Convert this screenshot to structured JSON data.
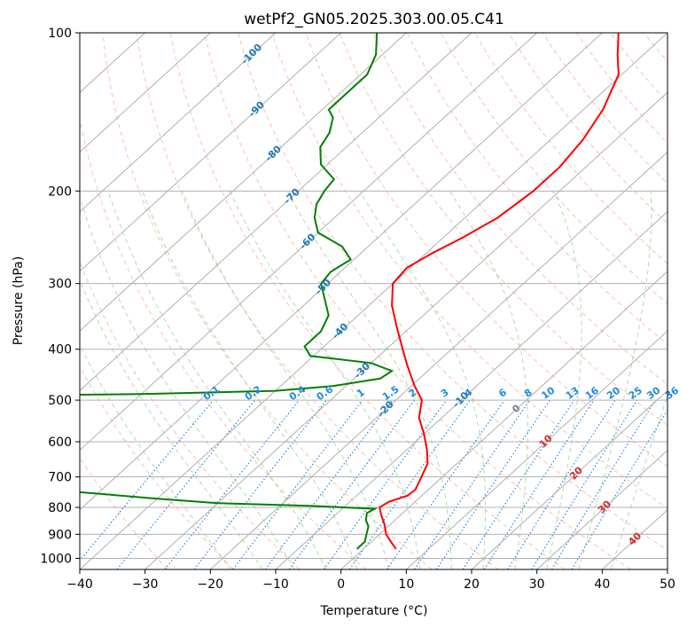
{
  "chart_data": {
    "type": "line",
    "chart_kind": "skew-T log-P diagram",
    "title": "wetPf2_GN05.2025.303.00.05.C41",
    "xlabel": "Temperature (°C)",
    "ylabel": "Pressure (hPa)",
    "xlim": [
      -40,
      50
    ],
    "ylim": [
      1050,
      100
    ],
    "y_scale": "log",
    "grid": true,
    "x_ticks": [
      -40,
      -30,
      -20,
      -10,
      0,
      10,
      20,
      30,
      40,
      50
    ],
    "y_ticks": [
      100,
      200,
      300,
      400,
      500,
      600,
      700,
      800,
      900,
      1000
    ],
    "isotherm_labels": [
      "-100",
      "-90",
      "-80",
      "-70",
      "-60",
      "-50",
      "-40",
      "-30",
      "-20",
      "-10",
      "0",
      "10",
      "20",
      "30",
      "40"
    ],
    "isotherm_label_values": [
      -100,
      -90,
      -80,
      -70,
      -60,
      -50,
      -40,
      -30,
      -20,
      -10,
      0,
      10,
      20,
      30,
      40
    ],
    "mixing_ratio_labels": [
      "0.1",
      "0.2",
      "0.4",
      "0.6",
      "1",
      "1.5",
      "2",
      "3",
      "4",
      "6",
      "8",
      "10",
      "13",
      "16",
      "20",
      "25",
      "30",
      "36"
    ],
    "mixing_ratio_values": [
      0.1,
      0.2,
      0.4,
      0.6,
      1,
      1.5,
      2,
      3,
      4,
      6,
      8,
      10,
      13,
      16,
      20,
      25,
      30,
      36
    ],
    "colors": {
      "temperature": "#ff0000",
      "dewpoint": "#008000",
      "isotherm_label_cold": "#1f77b4",
      "isotherm_label_zero": "#808080",
      "isotherm_label_warm": "#d62728",
      "mixing_ratio": "#1e88e5",
      "dry_adiabat": "#fa8d6e",
      "moist_adiabat": "#7dbf7d",
      "grid": "#b0b0b0"
    },
    "series": [
      {
        "key": "temperature",
        "points": [
          {
            "p": 960,
            "t": 5.0
          },
          {
            "p": 930,
            "t": 3.0
          },
          {
            "p": 900,
            "t": 1.0
          },
          {
            "p": 860,
            "t": -1.0
          },
          {
            "p": 830,
            "t": -2.8
          },
          {
            "p": 800,
            "t": -4.5
          },
          {
            "p": 780,
            "t": -4.0
          },
          {
            "p": 760,
            "t": -2.2
          },
          {
            "p": 740,
            "t": -2.0
          },
          {
            "p": 700,
            "t": -3.2
          },
          {
            "p": 660,
            "t": -4.5
          },
          {
            "p": 620,
            "t": -7.0
          },
          {
            "p": 580,
            "t": -10.0
          },
          {
            "p": 540,
            "t": -13.5
          },
          {
            "p": 500,
            "t": -16.0
          },
          {
            "p": 470,
            "t": -19.5
          },
          {
            "p": 430,
            "t": -24.0
          },
          {
            "p": 400,
            "t": -27.5
          },
          {
            "p": 360,
            "t": -32.5
          },
          {
            "p": 330,
            "t": -36.5
          },
          {
            "p": 300,
            "t": -40.0
          },
          {
            "p": 280,
            "t": -40.5
          },
          {
            "p": 262,
            "t": -39.0
          },
          {
            "p": 245,
            "t": -37.0
          },
          {
            "p": 225,
            "t": -35.0
          },
          {
            "p": 200,
            "t": -34.0
          },
          {
            "p": 180,
            "t": -34.0
          },
          {
            "p": 160,
            "t": -35.0
          },
          {
            "p": 140,
            "t": -37.0
          },
          {
            "p": 120,
            "t": -40.5
          },
          {
            "p": 110,
            "t": -44.0
          },
          {
            "p": 100,
            "t": -47.5
          }
        ]
      },
      {
        "key": "dewpoint",
        "points": [
          {
            "p": 960,
            "t": -1.0
          },
          {
            "p": 930,
            "t": -1.0
          },
          {
            "p": 900,
            "t": -2.0
          },
          {
            "p": 870,
            "t": -3.0
          },
          {
            "p": 845,
            "t": -4.5
          },
          {
            "p": 820,
            "t": -5.5
          },
          {
            "p": 805,
            "t": -5.0
          },
          {
            "p": 795,
            "t": -15.0
          },
          {
            "p": 785,
            "t": -30.0
          },
          {
            "p": 770,
            "t": -40.0
          },
          {
            "p": 745,
            "t": -55.0
          },
          {
            "p": 725,
            "t": -80.0
          },
          {
            "p": 490,
            "t": -80.0
          },
          {
            "p": 487,
            "t": -60.0
          },
          {
            "p": 480,
            "t": -40.0
          },
          {
            "p": 470,
            "t": -32.0
          },
          {
            "p": 455,
            "t": -26.0
          },
          {
            "p": 440,
            "t": -25.5
          },
          {
            "p": 425,
            "t": -30.0
          },
          {
            "p": 412,
            "t": -40.5
          },
          {
            "p": 395,
            "t": -43.0
          },
          {
            "p": 370,
            "t": -43.0
          },
          {
            "p": 345,
            "t": -44.5
          },
          {
            "p": 320,
            "t": -48.0
          },
          {
            "p": 300,
            "t": -51.0
          },
          {
            "p": 285,
            "t": -51.5
          },
          {
            "p": 270,
            "t": -50.5
          },
          {
            "p": 255,
            "t": -54.0
          },
          {
            "p": 240,
            "t": -60.0
          },
          {
            "p": 225,
            "t": -63.0
          },
          {
            "p": 212,
            "t": -65.0
          },
          {
            "p": 200,
            "t": -66.0
          },
          {
            "p": 190,
            "t": -66.5
          },
          {
            "p": 178,
            "t": -71.0
          },
          {
            "p": 165,
            "t": -74.0
          },
          {
            "p": 155,
            "t": -75.0
          },
          {
            "p": 145,
            "t": -77.0
          },
          {
            "p": 140,
            "t": -79.0
          },
          {
            "p": 130,
            "t": -79.0
          },
          {
            "p": 120,
            "t": -79.0
          },
          {
            "p": 110,
            "t": -81.0
          },
          {
            "p": 100,
            "t": -84.5
          }
        ]
      }
    ]
  }
}
